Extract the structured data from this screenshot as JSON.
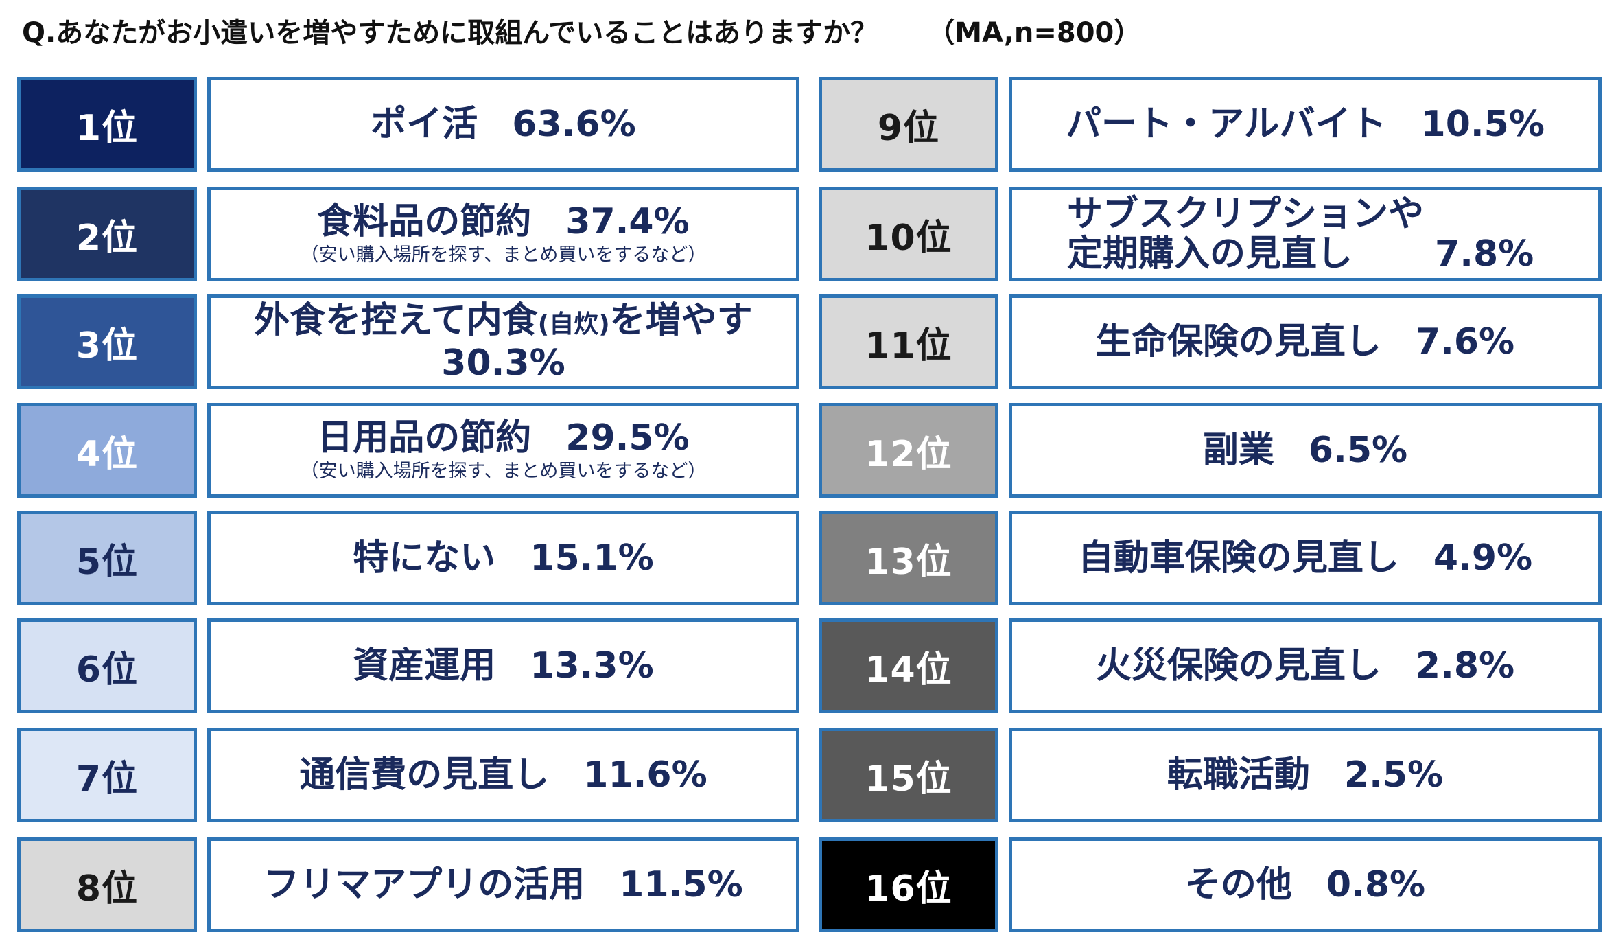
{
  "title": "Q.あなたがお小遣いを増やすために取組んでいることはありますか？",
  "subtitle": "（MA,n=800）",
  "chart_data": {
    "type": "table",
    "title": "Q.あなたがお小遣いを増やすために取組んでいることはありますか？",
    "subtitle": "（MA,n=800）",
    "unit": "%",
    "rows": [
      {
        "rank": "1位",
        "rank_value": 1,
        "label": "ポイ活",
        "value": 63.6,
        "pct_label": "63.6%",
        "note": "",
        "rank_bg": "#0d2260",
        "rank_fg": "#ffffff"
      },
      {
        "rank": "2位",
        "rank_value": 2,
        "label": "食料品の節約",
        "value": 37.4,
        "pct_label": "37.4%",
        "note": "（安い購入場所を探す、まとめ買いをするなど）",
        "rank_bg": "#1f3463",
        "rank_fg": "#ffffff"
      },
      {
        "rank": "3位",
        "rank_value": 3,
        "label": "外食を控えて内食",
        "label_small": "(自炊)",
        "label_after": "を増やす",
        "value": 30.3,
        "pct_label": "30.3%",
        "note": "",
        "rank_bg": "#2f5597",
        "rank_fg": "#ffffff"
      },
      {
        "rank": "4位",
        "rank_value": 4,
        "label": "日用品の節約",
        "value": 29.5,
        "pct_label": "29.5%",
        "note": "（安い購入場所を探す、まとめ買いをするなど）",
        "rank_bg": "#8eaadb",
        "rank_fg": "#ffffff"
      },
      {
        "rank": "5位",
        "rank_value": 5,
        "label": "特にない",
        "value": 15.1,
        "pct_label": "15.1%",
        "note": "",
        "rank_bg": "#b4c7e7",
        "rank_fg": "#1a2a5c"
      },
      {
        "rank": "6位",
        "rank_value": 6,
        "label": "資産運用",
        "value": 13.3,
        "pct_label": "13.3%",
        "note": "",
        "rank_bg": "#d6e1f3",
        "rank_fg": "#1a2a5c"
      },
      {
        "rank": "7位",
        "rank_value": 7,
        "label": "通信費の見直し",
        "value": 11.6,
        "pct_label": "11.6%",
        "note": "",
        "rank_bg": "#dde7f6",
        "rank_fg": "#1a2a5c"
      },
      {
        "rank": "8位",
        "rank_value": 8,
        "label": "フリマアプリの活用",
        "value": 11.5,
        "pct_label": "11.5%",
        "note": "",
        "rank_bg": "#d9d9d9",
        "rank_fg": "#1a1a1a"
      },
      {
        "rank": "9位",
        "rank_value": 9,
        "label": "パート・アルバイト",
        "value": 10.5,
        "pct_label": "10.5%",
        "note": "",
        "rank_bg": "#d9d9d9",
        "rank_fg": "#1a1a1a"
      },
      {
        "rank": "10位",
        "rank_value": 10,
        "label": "サブスクリプションや定期購入の見直し",
        "label_line1": "サブスクリプションや",
        "label_line2": "定期購入の見直し",
        "value": 7.8,
        "pct_label": "7.8%",
        "note": "",
        "rank_bg": "#d9d9d9",
        "rank_fg": "#1a1a1a"
      },
      {
        "rank": "11位",
        "rank_value": 11,
        "label": "生命保険の見直し",
        "value": 7.6,
        "pct_label": "7.6%",
        "note": "",
        "rank_bg": "#d9d9d9",
        "rank_fg": "#1a1a1a"
      },
      {
        "rank": "12位",
        "rank_value": 12,
        "label": "副業",
        "value": 6.5,
        "pct_label": "6.5%",
        "note": "",
        "rank_bg": "#a6a6a6",
        "rank_fg": "#ffffff"
      },
      {
        "rank": "13位",
        "rank_value": 13,
        "label": "自動車保険の見直し",
        "value": 4.9,
        "pct_label": "4.9%",
        "note": "",
        "rank_bg": "#808080",
        "rank_fg": "#ffffff"
      },
      {
        "rank": "14位",
        "rank_value": 14,
        "label": "火災保険の見直し",
        "value": 2.8,
        "pct_label": "2.8%",
        "note": "",
        "rank_bg": "#595959",
        "rank_fg": "#ffffff"
      },
      {
        "rank": "15位",
        "rank_value": 15,
        "label": "転職活動",
        "value": 2.5,
        "pct_label": "2.5%",
        "note": "",
        "rank_bg": "#595959",
        "rank_fg": "#ffffff"
      },
      {
        "rank": "16位",
        "rank_value": 16,
        "label": "その他",
        "value": 0.8,
        "pct_label": "0.8%",
        "note": "",
        "rank_bg": "#000000",
        "rank_fg": "#ffffff"
      }
    ]
  },
  "colors": {
    "border": "#2e75b6",
    "text": "#1a2a5c"
  }
}
